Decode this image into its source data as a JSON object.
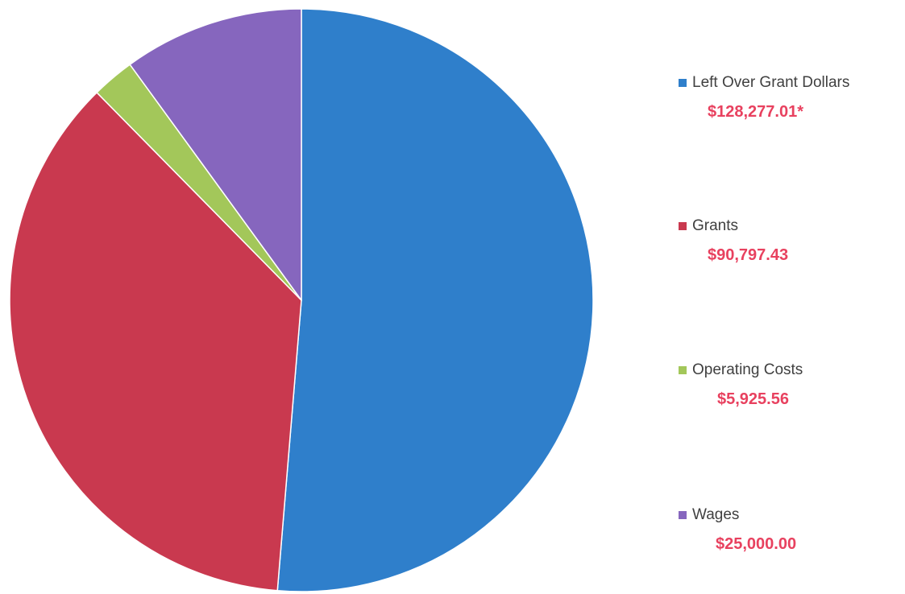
{
  "chart_data": {
    "type": "pie",
    "categories": [
      "Left Over Grant Dollars",
      "Grants",
      "Operating Costs",
      "Wages"
    ],
    "values": [
      128277.01,
      90797.43,
      5925.56,
      25000.0
    ],
    "value_labels": [
      "$128,277.01*",
      "$90,797.43",
      "$5,925.56",
      "$25,000.00"
    ],
    "colors": [
      "#2f7fcb",
      "#c9394f",
      "#a3c75a",
      "#8666be"
    ],
    "start_angle_deg": 0,
    "direction": "clockwise",
    "legend_position": "right",
    "title": ""
  }
}
